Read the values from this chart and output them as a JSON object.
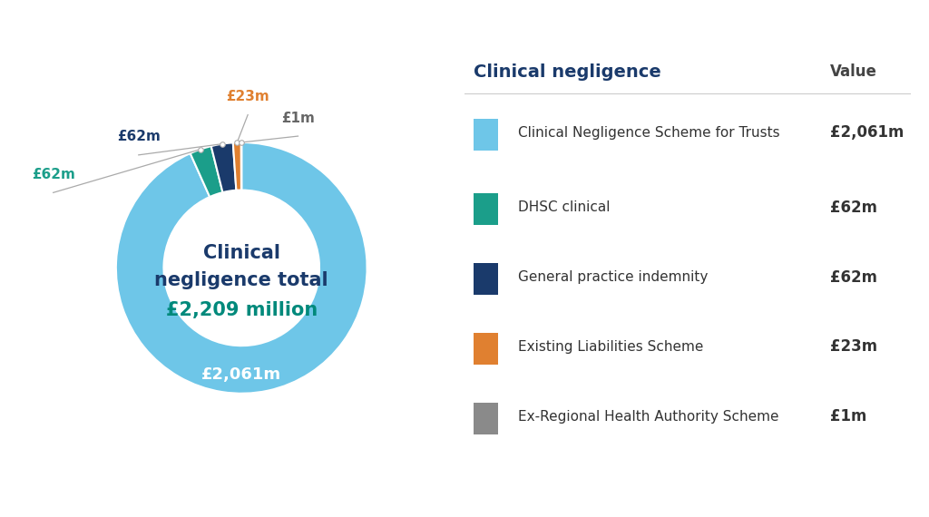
{
  "title_line1": "Clinical",
  "title_line2": "negligence total",
  "title_value": "£2,209 million",
  "title_color": "#1a3a6b",
  "title_value_color": "#00897b",
  "segments": [
    {
      "label": "Clinical Negligence Scheme for Trusts",
      "value": 2061,
      "color": "#6ec6e8",
      "display": "£2,061m",
      "label_color": "#ffffff"
    },
    {
      "label": "DHSC clinical",
      "value": 62,
      "color": "#1b9e8a",
      "display": "£62m",
      "label_color": "#1b9e8a"
    },
    {
      "label": "General practice indemnity",
      "value": 62,
      "color": "#1a3a6b",
      "display": "£62m",
      "label_color": "#1a3a6b"
    },
    {
      "label": "Existing Liabilities Scheme",
      "value": 23,
      "color": "#e08030",
      "display": "£23m",
      "label_color": "#e08030"
    },
    {
      "label": "Ex-Regional Health Authority Scheme",
      "value": 1,
      "color": "#8a8a8a",
      "display": "£1m",
      "label_color": "#666666"
    }
  ],
  "legend_title": "Clinical negligence",
  "legend_col2": "Value",
  "background_color": "#ffffff"
}
